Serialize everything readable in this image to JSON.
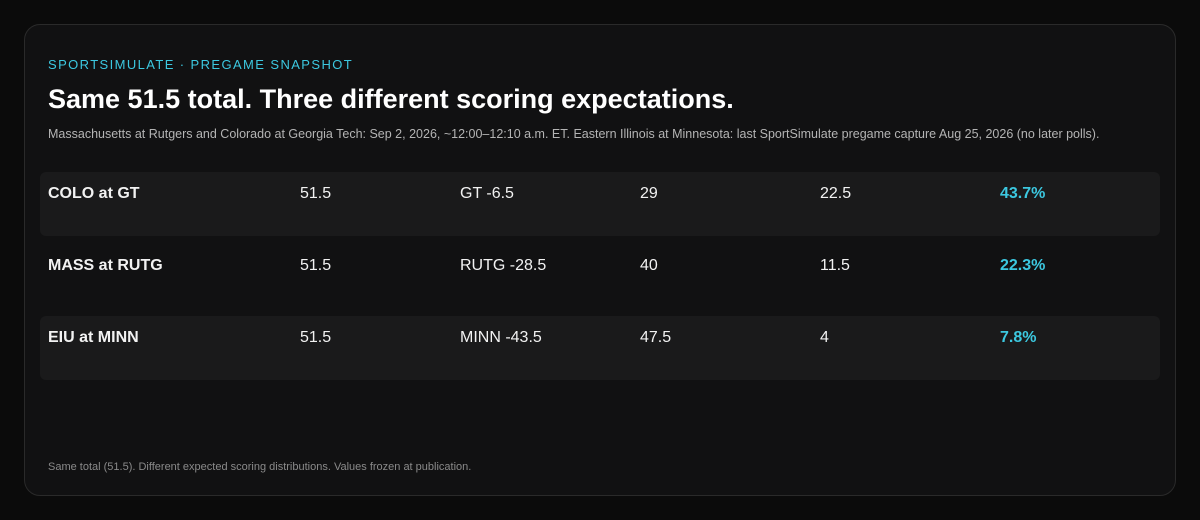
{
  "header": {
    "eyebrow": "SPORTSIMULATE · PREGAME SNAPSHOT",
    "title": "Same 51.5 total. Three different scoring expectations.",
    "subtitle": "Massachusetts at Rutgers and Colorado at Georgia Tech: Sep 2, 2026, ~12:00–12:10 a.m. ET. Eastern Illinois at Minnesota: last SportSimulate pregame capture Aug 25, 2026 (no later polls)."
  },
  "table": {
    "rows": [
      [
        "COLO at GT",
        "51.5",
        "GT -6.5",
        "29",
        "22.5",
        "43.7%"
      ],
      [
        "MASS at RUTG",
        "51.5",
        "RUTG -28.5",
        "40",
        "11.5",
        "22.3%"
      ],
      [
        "EIU at MINN",
        "51.5",
        "MINN -43.5",
        "47.5",
        "4",
        "7.8%"
      ]
    ]
  },
  "footer": "Same total (51.5). Different expected scoring distributions. Values frozen at publication."
}
